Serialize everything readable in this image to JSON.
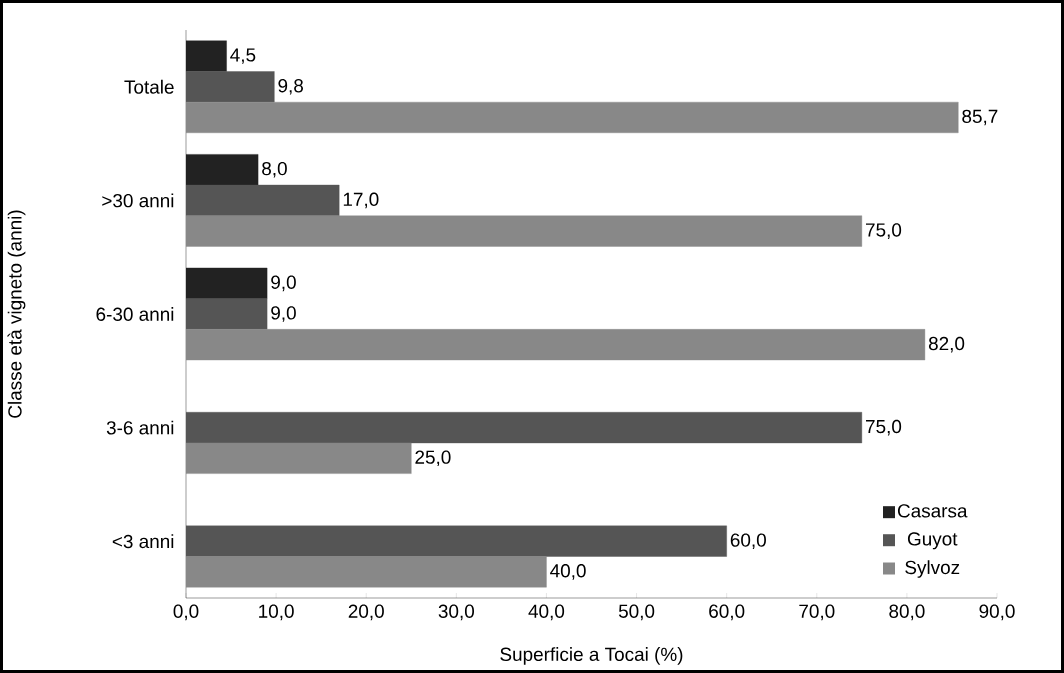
{
  "chart_data": {
    "type": "bar",
    "orientation": "horizontal",
    "xlabel": "Superficie a Tocai  (%)",
    "ylabel": "Classe età vigneto (anni)",
    "categories": [
      "Totale",
      ">30 anni",
      "6-30 anni",
      "3-6 anni",
      "<3 anni"
    ],
    "xlim": [
      0,
      90
    ],
    "xticks": [
      {
        "value": 0,
        "label": "0,0"
      },
      {
        "value": 10,
        "label": "10,0"
      },
      {
        "value": 20,
        "label": "20,0"
      },
      {
        "value": 30,
        "label": "30,0"
      },
      {
        "value": 40,
        "label": "40,0"
      },
      {
        "value": 50,
        "label": "50,0"
      },
      {
        "value": 60,
        "label": "60,0"
      },
      {
        "value": 70,
        "label": "70,0"
      },
      {
        "value": 80,
        "label": "80,0"
      },
      {
        "value": 90,
        "label": "90,0"
      }
    ],
    "legend": "bottom right",
    "series": [
      {
        "name": "Casarsa",
        "color": "#222222",
        "values": [
          4.5,
          8.0,
          9.0,
          null,
          null
        ],
        "value_labels": [
          "4,5",
          "8,0",
          "9,0",
          null,
          null
        ]
      },
      {
        "name": "Guyot",
        "color": "#555555",
        "values": [
          9.8,
          17.0,
          9.0,
          75.0,
          60.0
        ],
        "value_labels": [
          "9,8",
          "17,0",
          "9,0",
          "75,0",
          "60,0"
        ]
      },
      {
        "name": "Sylvoz",
        "color": "#888888",
        "values": [
          85.7,
          75.0,
          82.0,
          25.0,
          40.0
        ],
        "value_labels": [
          "85,7",
          "75,0",
          "82,0",
          "25,0",
          "40,0"
        ]
      }
    ]
  }
}
